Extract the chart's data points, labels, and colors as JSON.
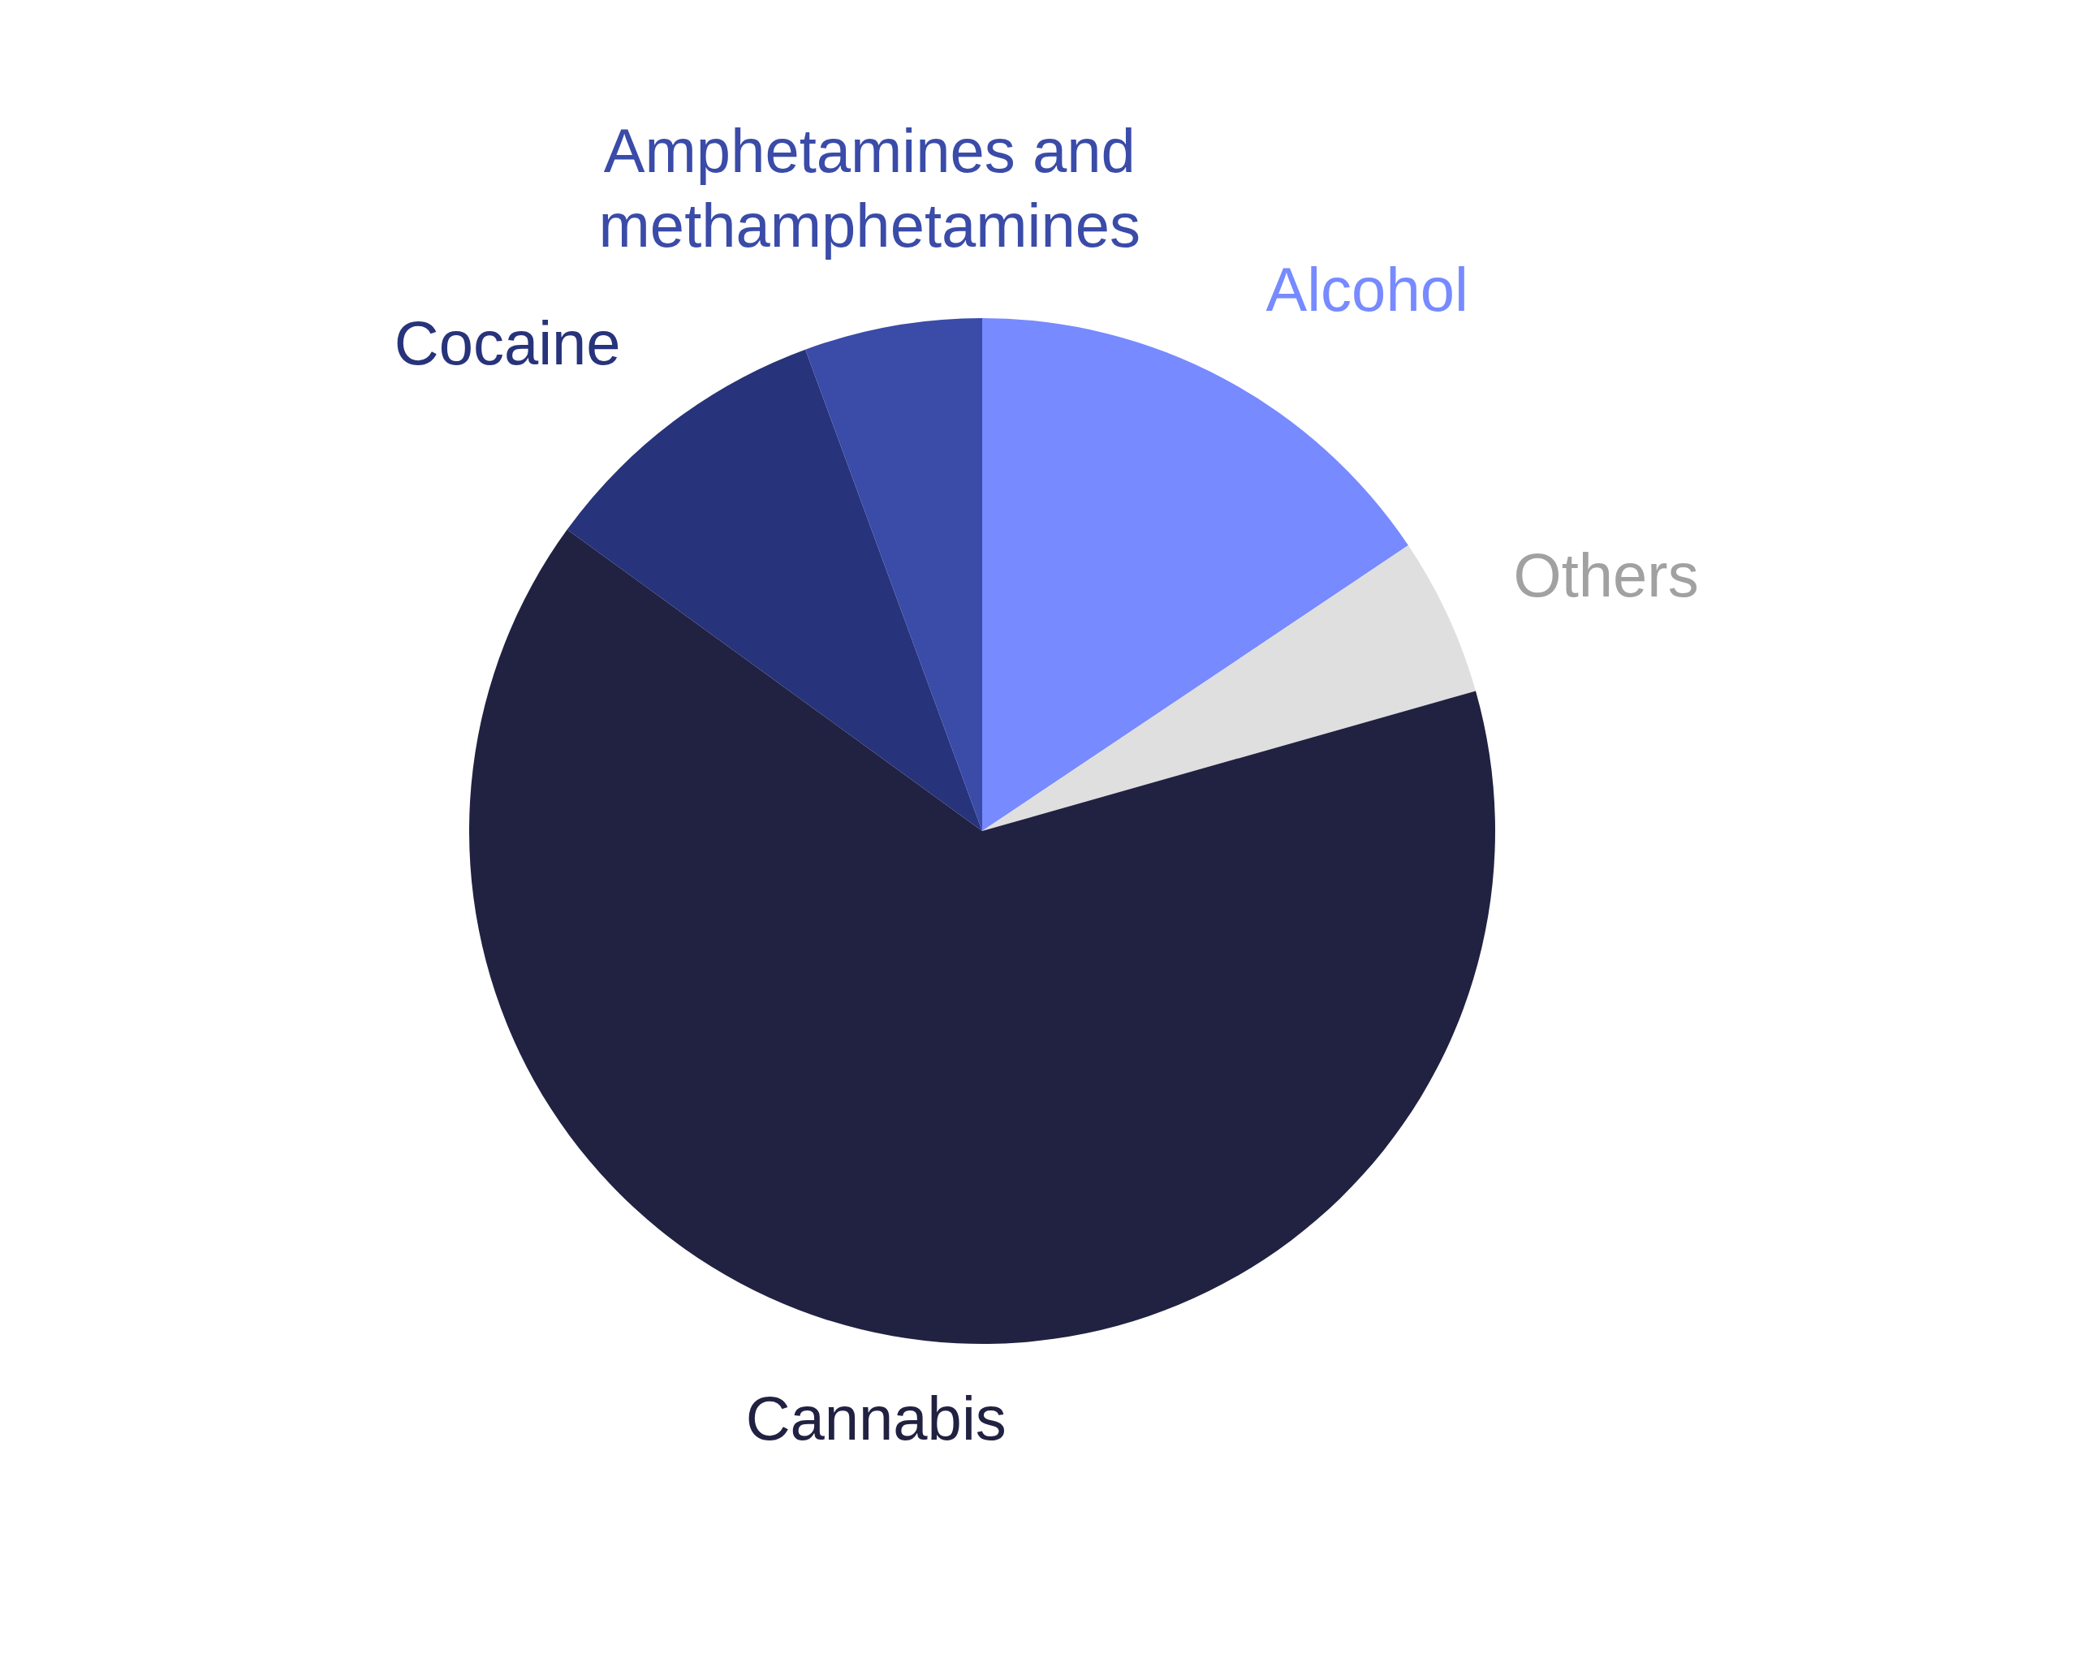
{
  "chart_data": {
    "type": "pie",
    "categories": [
      "Alcohol",
      "Others",
      "Cannabis",
      "Cocaine",
      "Amphetamines and methamphetamines"
    ],
    "values": [
      15.6,
      5.0,
      64.4,
      9.4,
      5.6
    ],
    "colors": [
      "#778aff",
      "#dfdfdf",
      "#212142",
      "#27337a",
      "#3a4ba8"
    ]
  }
}
